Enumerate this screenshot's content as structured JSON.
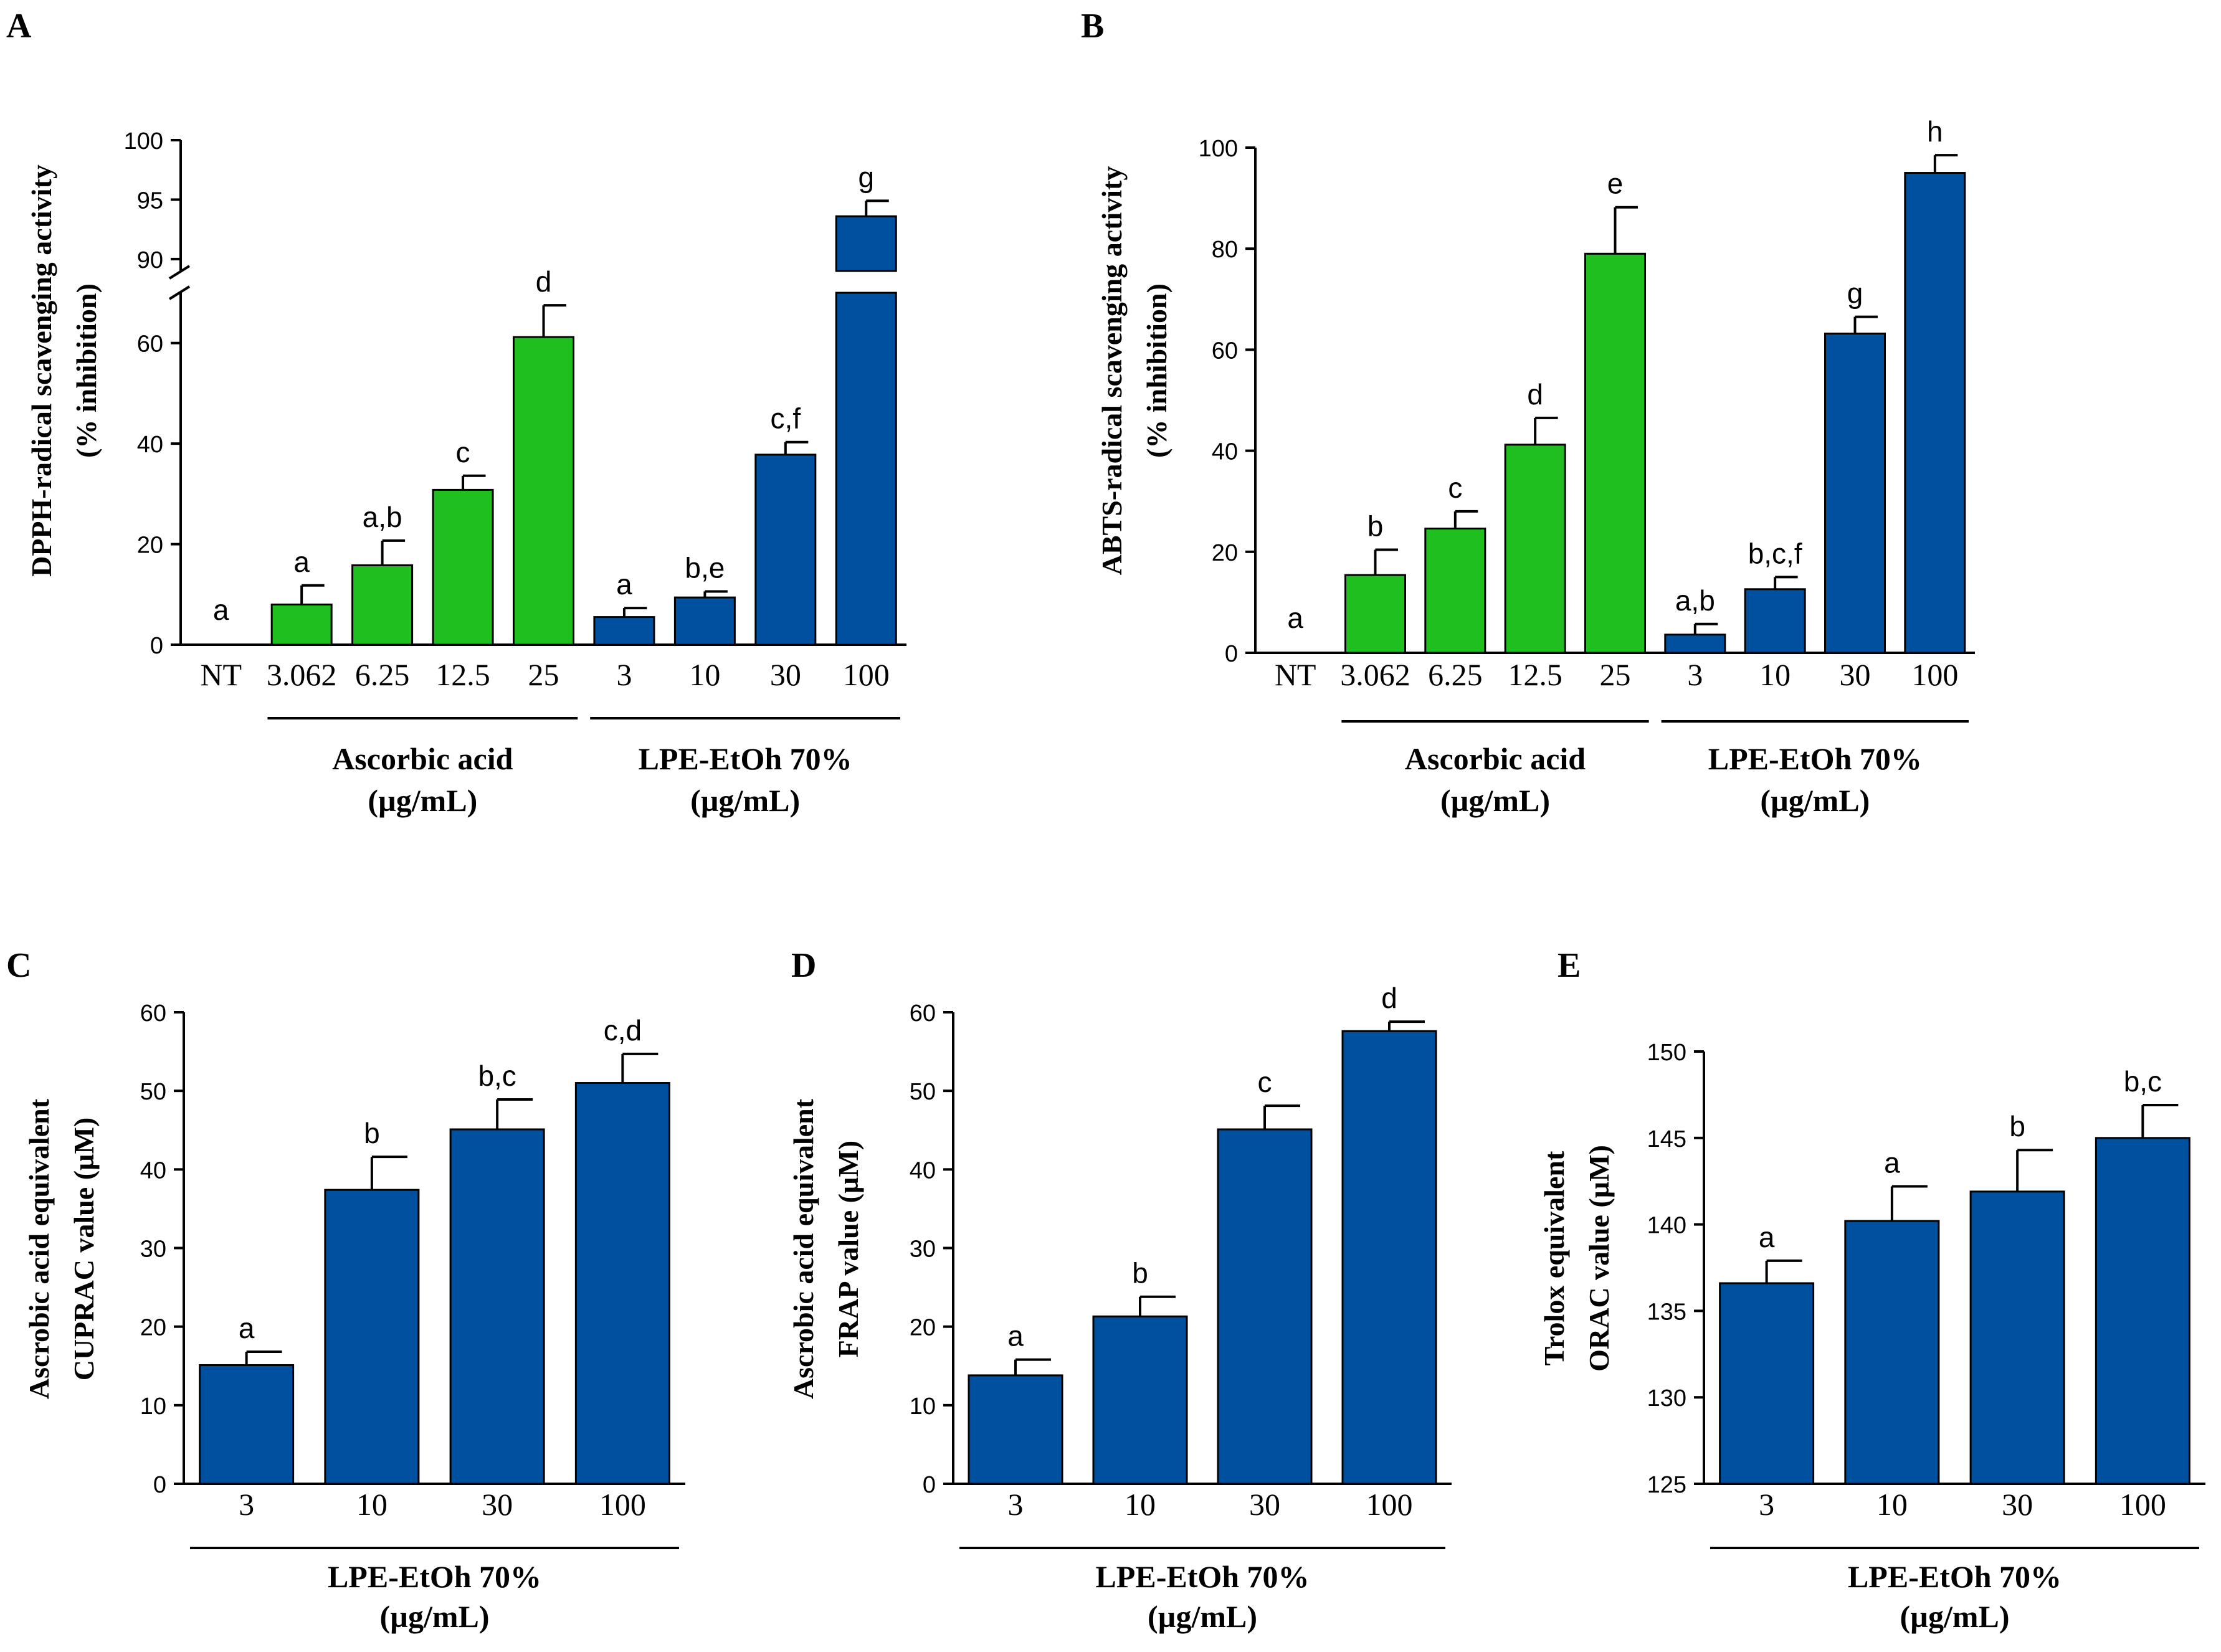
{
  "figure": {
    "colors": {
      "green": "#1FBF1F",
      "blue": "#0050A0",
      "axis": "#000000",
      "background": "#FFFFFF"
    }
  },
  "chart_data": [
    {
      "panel_label": "A",
      "type": "bar",
      "ylabel_lines": [
        "DPPH-radical scavenging activity",
        "(% inhibition)"
      ],
      "yticks_lower": [
        0,
        20,
        40,
        60
      ],
      "yticks_upper": [
        90,
        95,
        100
      ],
      "ylim_lower": [
        0,
        70
      ],
      "ylim_upper": [
        89,
        100
      ],
      "axis_break": true,
      "categories": [
        "NT",
        "3.062",
        "6.25",
        "12.5",
        "25",
        "3",
        "10",
        "30",
        "100"
      ],
      "values": [
        0,
        8,
        15.8,
        30.8,
        61.2,
        5.5,
        9.4,
        37.8,
        93.6
      ],
      "errors": [
        0,
        3.8,
        4.9,
        2.8,
        6.3,
        1.8,
        1.2,
        2.5,
        1.3
      ],
      "letters": [
        "a",
        "a",
        "a,b",
        "c",
        "d",
        "a",
        "b,e",
        "c,f",
        "g"
      ],
      "bar_colors": [
        "green",
        "green",
        "green",
        "green",
        "green",
        "blue",
        "blue",
        "blue",
        "blue"
      ],
      "groups": [
        {
          "lines": [
            "Ascorbic acid",
            "(µg/mL)"
          ],
          "from": 1,
          "to": 4
        },
        {
          "lines": [
            "LPE-EtOh 70%",
            "(µg/mL)"
          ],
          "from": 5,
          "to": 8
        }
      ]
    },
    {
      "panel_label": "B",
      "type": "bar",
      "ylabel_lines": [
        "ABTS-radical scavenging activity",
        "(% inhibition)"
      ],
      "yticks": [
        0,
        20,
        40,
        60,
        80,
        100
      ],
      "ylim": [
        0,
        100
      ],
      "categories": [
        "NT",
        "3.062",
        "6.25",
        "12.5",
        "25",
        "3",
        "10",
        "30",
        "100"
      ],
      "values": [
        0,
        15.4,
        24.6,
        41.2,
        79,
        3.6,
        12.6,
        63.2,
        95
      ],
      "errors": [
        0,
        5,
        3.4,
        5.3,
        9.2,
        2.1,
        2.4,
        3.3,
        3.5
      ],
      "letters": [
        "a",
        "b",
        "c",
        "d",
        "e",
        "a,b",
        "b,c,f",
        "g",
        "h"
      ],
      "bar_colors": [
        "green",
        "green",
        "green",
        "green",
        "green",
        "blue",
        "blue",
        "blue",
        "blue"
      ],
      "groups": [
        {
          "lines": [
            "Ascorbic acid",
            "(µg/mL)"
          ],
          "from": 1,
          "to": 4
        },
        {
          "lines": [
            "LPE-EtOh 70%",
            "(µg/mL)"
          ],
          "from": 5,
          "to": 8
        }
      ]
    },
    {
      "panel_label": "C",
      "type": "bar",
      "ylabel_lines": [
        "Ascrobic acid equivalent",
        "CUPRAC value (µM)"
      ],
      "yticks": [
        0,
        10,
        20,
        30,
        40,
        50,
        60
      ],
      "ylim": [
        0,
        60
      ],
      "categories": [
        "3",
        "10",
        "30",
        "100"
      ],
      "values": [
        15.1,
        37.4,
        45.1,
        51
      ],
      "errors": [
        1.7,
        4.2,
        3.8,
        3.7
      ],
      "letters": [
        "a",
        "b",
        "b,c",
        "c,d"
      ],
      "bar_colors": [
        "blue",
        "blue",
        "blue",
        "blue"
      ],
      "groups": [
        {
          "lines": [
            "LPE-EtOh 70%",
            "(µg/mL)"
          ],
          "from": 0,
          "to": 3
        }
      ]
    },
    {
      "panel_label": "D",
      "type": "bar",
      "ylabel_lines": [
        "Ascrobic acid equivalent",
        "FRAP value (µM)"
      ],
      "yticks": [
        0,
        10,
        20,
        30,
        40,
        50,
        60
      ],
      "ylim": [
        0,
        60
      ],
      "categories": [
        "3",
        "10",
        "30",
        "100"
      ],
      "values": [
        13.8,
        21.3,
        45.1,
        57.6
      ],
      "errors": [
        2,
        2.5,
        3,
        1.2
      ],
      "letters": [
        "a",
        "b",
        "c",
        "d"
      ],
      "bar_colors": [
        "blue",
        "blue",
        "blue",
        "blue"
      ],
      "groups": [
        {
          "lines": [
            "LPE-EtOh 70%",
            "(µg/mL)"
          ],
          "from": 0,
          "to": 3
        }
      ]
    },
    {
      "panel_label": "E",
      "type": "bar",
      "ylabel_lines": [
        "Trolox equivalent",
        "ORAC value (µM)"
      ],
      "yticks": [
        125,
        130,
        135,
        140,
        145,
        150
      ],
      "ylim": [
        125,
        150
      ],
      "categories": [
        "3",
        "10",
        "30",
        "100"
      ],
      "values": [
        136.6,
        140.2,
        141.9,
        145
      ],
      "errors": [
        1.3,
        2,
        2.4,
        1.9
      ],
      "letters": [
        "a",
        "a",
        "b",
        "b,c"
      ],
      "bar_colors": [
        "blue",
        "blue",
        "blue",
        "blue"
      ],
      "groups": [
        {
          "lines": [
            "LPE-EtOh 70%",
            "(µg/mL)"
          ],
          "from": 0,
          "to": 3
        }
      ]
    }
  ]
}
